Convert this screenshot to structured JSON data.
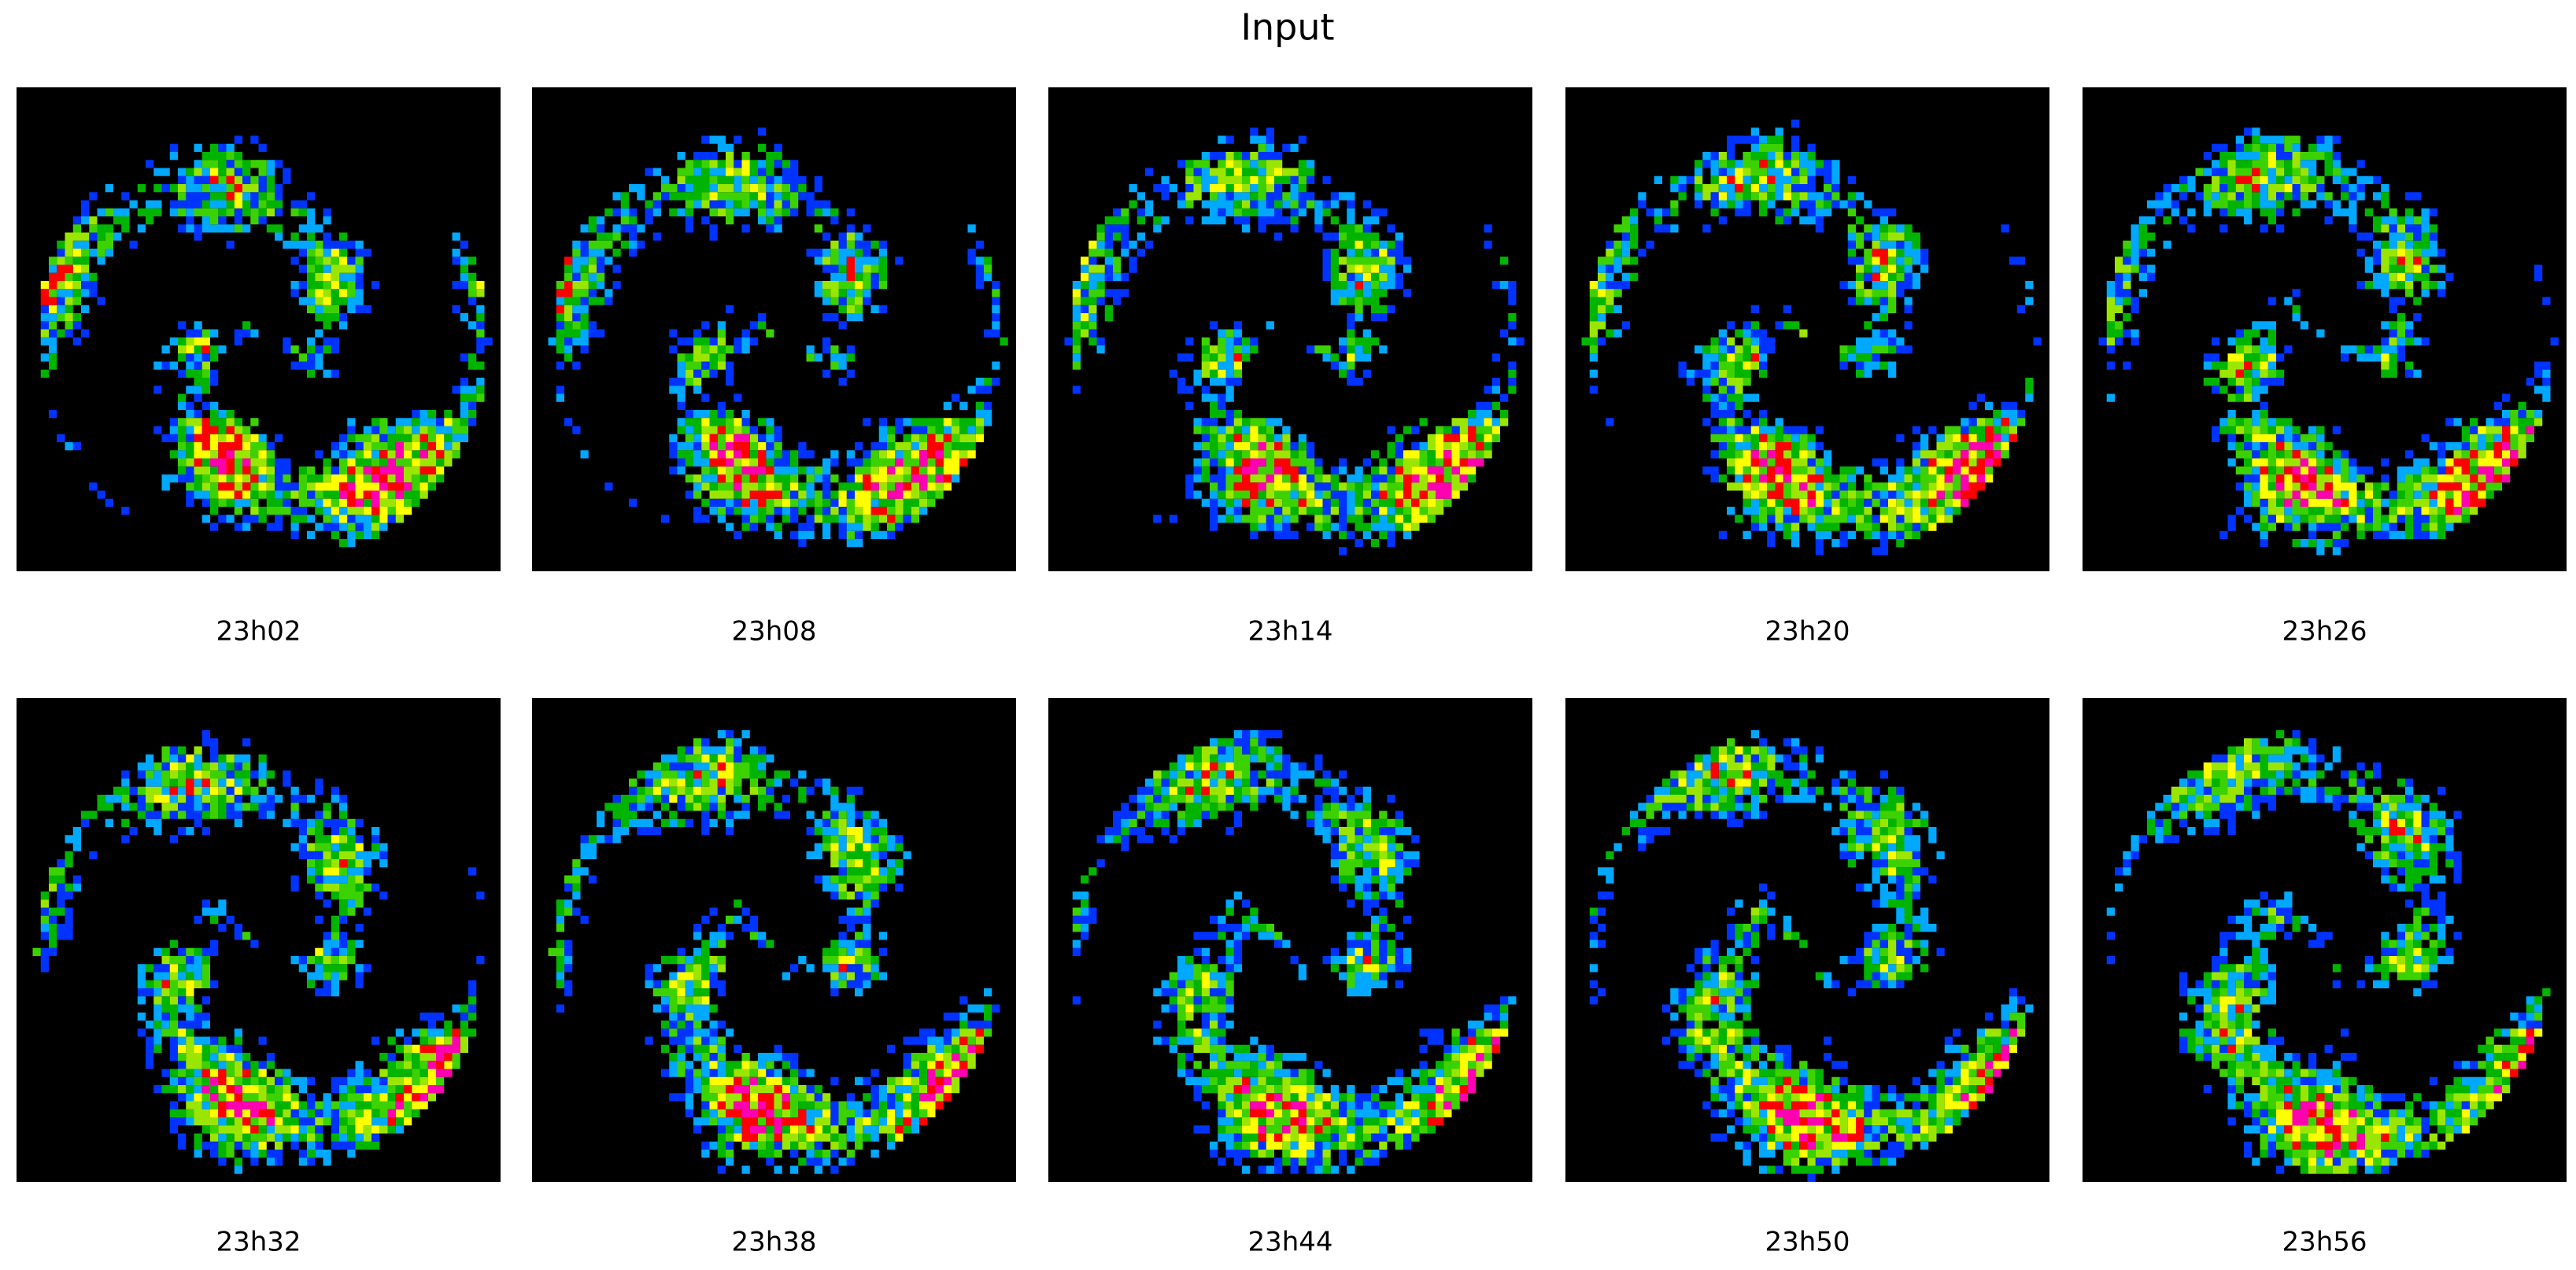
{
  "title": "Input",
  "panels": [
    {
      "label": "23h02"
    },
    {
      "label": "23h08"
    },
    {
      "label": "23h14"
    },
    {
      "label": "23h20"
    },
    {
      "label": "23h26"
    },
    {
      "label": "23h32"
    },
    {
      "label": "23h38"
    },
    {
      "label": "23h44"
    },
    {
      "label": "23h50"
    },
    {
      "label": "23h56"
    }
  ]
}
